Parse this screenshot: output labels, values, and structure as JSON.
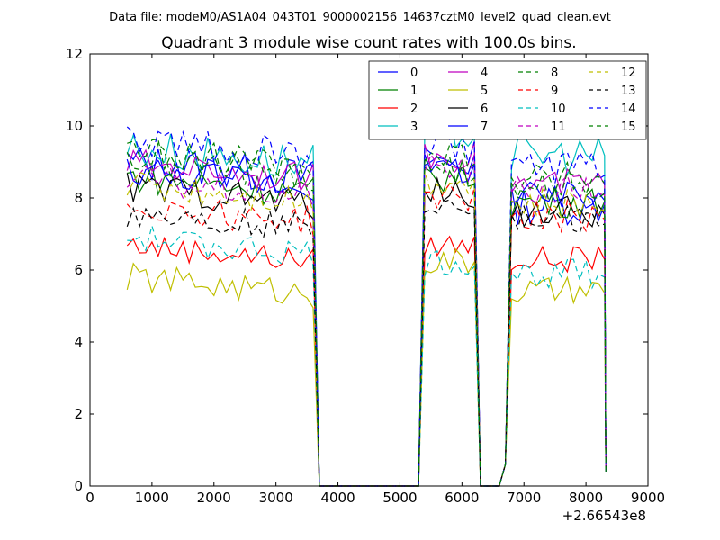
{
  "page": {
    "suptitle": "Data file: modeM0/AS1A04_043T01_9000002156_14637cztM0_level2_quad_clean.evt",
    "title": "Quadrant 3 module wise count rates with 100.0s bins."
  },
  "chart_data": {
    "type": "line",
    "title": "Quadrant 3 module wise count rates with 100.0s bins.",
    "xlabel": "",
    "ylabel": "",
    "x_offset_label": "+2.66543e8",
    "xlim": [
      0,
      9000
    ],
    "ylim": [
      0,
      12
    ],
    "xticks": [
      0,
      1000,
      2000,
      3000,
      4000,
      5000,
      6000,
      7000,
      8000,
      9000
    ],
    "yticks": [
      0,
      2,
      4,
      6,
      8,
      10,
      12
    ],
    "grid": false,
    "legend_position": "top-right",
    "legend_columns": 4,
    "segments": [
      {
        "x_start": 600,
        "x_end": 3600,
        "step": 100
      },
      {
        "x_start": 5400,
        "x_end": 6200,
        "step": 100
      },
      {
        "x_start": 6800,
        "x_end": 8300,
        "step": 100
      }
    ],
    "gap_values": {
      "x": [
        3700,
        3800,
        4000,
        4500,
        5000,
        5300,
        6300,
        6400,
        6500,
        6600,
        6700,
        8350
      ],
      "y_note": "rates at gap points are ~0 except ramps"
    },
    "series": [
      {
        "name": "0",
        "color": "#0000ff",
        "dash": "solid",
        "level": [
          9.0,
          9.0,
          7.8
        ],
        "amp": 0.55
      },
      {
        "name": "1",
        "color": "#008000",
        "dash": "solid",
        "level": [
          8.6,
          8.6,
          7.9
        ],
        "amp": 0.45
      },
      {
        "name": "2",
        "color": "#ff0000",
        "dash": "solid",
        "level": [
          6.7,
          6.7,
          6.3
        ],
        "amp": 0.35
      },
      {
        "name": "3",
        "color": "#00bfbf",
        "dash": "solid",
        "level": [
          9.4,
          9.8,
          9.2
        ],
        "amp": 0.55
      },
      {
        "name": "4",
        "color": "#bf00bf",
        "dash": "solid",
        "level": [
          9.0,
          9.2,
          8.4
        ],
        "amp": 0.4
      },
      {
        "name": "5",
        "color": "#bfbf00",
        "dash": "solid",
        "level": [
          5.8,
          6.2,
          5.4
        ],
        "amp": 0.4
      },
      {
        "name": "6",
        "color": "#000000",
        "dash": "solid",
        "level": [
          8.3,
          8.1,
          7.6
        ],
        "amp": 0.45
      },
      {
        "name": "7",
        "color": "#0000ff",
        "dash": "solid",
        "level": [
          8.8,
          8.8,
          8.0
        ],
        "amp": 0.45
      },
      {
        "name": "8",
        "color": "#008000",
        "dash": "dashed",
        "level": [
          9.1,
          9.2,
          8.5
        ],
        "amp": 0.5
      },
      {
        "name": "9",
        "color": "#ff0000",
        "dash": "dashed",
        "level": [
          7.8,
          8.0,
          7.5
        ],
        "amp": 0.45
      },
      {
        "name": "10",
        "color": "#00bfbf",
        "dash": "dashed",
        "level": [
          6.9,
          6.2,
          5.9
        ],
        "amp": 0.4
      },
      {
        "name": "11",
        "color": "#bf00bf",
        "dash": "dashed",
        "level": [
          8.5,
          8.8,
          8.2
        ],
        "amp": 0.45
      },
      {
        "name": "12",
        "color": "#bfbf00",
        "dash": "dashed",
        "level": [
          8.4,
          8.5,
          7.8
        ],
        "amp": 0.45
      },
      {
        "name": "13",
        "color": "#000000",
        "dash": "dashed",
        "level": [
          7.6,
          7.9,
          7.4
        ],
        "amp": 0.4
      },
      {
        "name": "14",
        "color": "#0000ff",
        "dash": "dashed",
        "level": [
          9.6,
          9.4,
          8.8
        ],
        "amp": 0.5
      },
      {
        "name": "15",
        "color": "#008000",
        "dash": "dashed",
        "level": [
          9.3,
          8.8,
          8.3
        ],
        "amp": 0.45
      }
    ]
  }
}
